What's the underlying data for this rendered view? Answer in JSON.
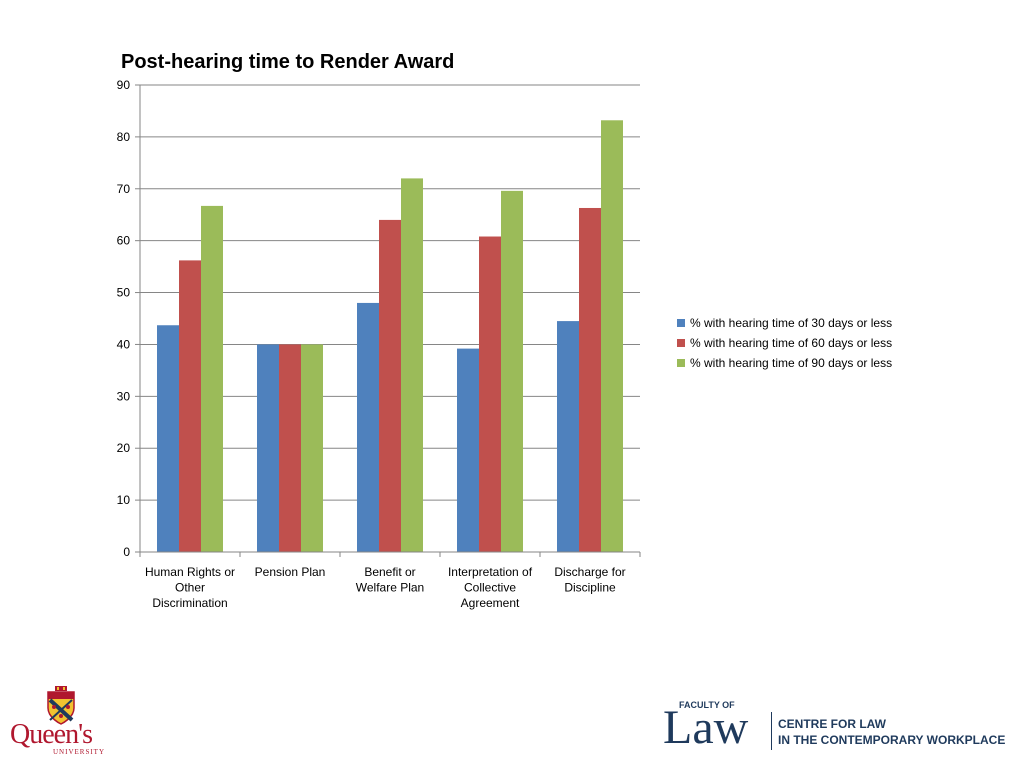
{
  "chart_data": {
    "type": "bar",
    "title": "Post-hearing time to Render Award",
    "xlabel": "",
    "ylabel": "",
    "ylim": [
      0,
      90
    ],
    "yticks": [
      0,
      10,
      20,
      30,
      40,
      50,
      60,
      70,
      80,
      90
    ],
    "grid": true,
    "legend_position": "right",
    "categories": [
      [
        "Human Rights or",
        "Other",
        "Discrimination"
      ],
      [
        "Pension Plan"
      ],
      [
        "Benefit or",
        "Welfare Plan"
      ],
      [
        "Interpretation of",
        "Collective",
        "Agreement"
      ],
      [
        "Discharge for",
        "Discipline"
      ]
    ],
    "series": [
      {
        "name": "% with hearing time of 30 days or less",
        "color": "#4f81bd",
        "values": [
          43.7,
          40,
          48,
          39.2,
          44.5
        ]
      },
      {
        "name": "% with hearing time of 60 days or less",
        "color": "#c0504d",
        "values": [
          56.2,
          40,
          64,
          60.8,
          66.3
        ]
      },
      {
        "name": "% with hearing time of 90 days or less",
        "color": "#9bbb59",
        "values": [
          66.7,
          40,
          72,
          69.6,
          83.2
        ]
      }
    ]
  },
  "logos": {
    "queens": {
      "name": "Queen's",
      "sub": "UNIVERSITY",
      "color": "#b0172e"
    },
    "law": {
      "faculty": "FACULTY OF",
      "word": "Law",
      "centre_line1": "CENTRE FOR LAW",
      "centre_line2": "IN THE CONTEMPORARY WORKPLACE",
      "color": "#1f3a5c"
    }
  }
}
